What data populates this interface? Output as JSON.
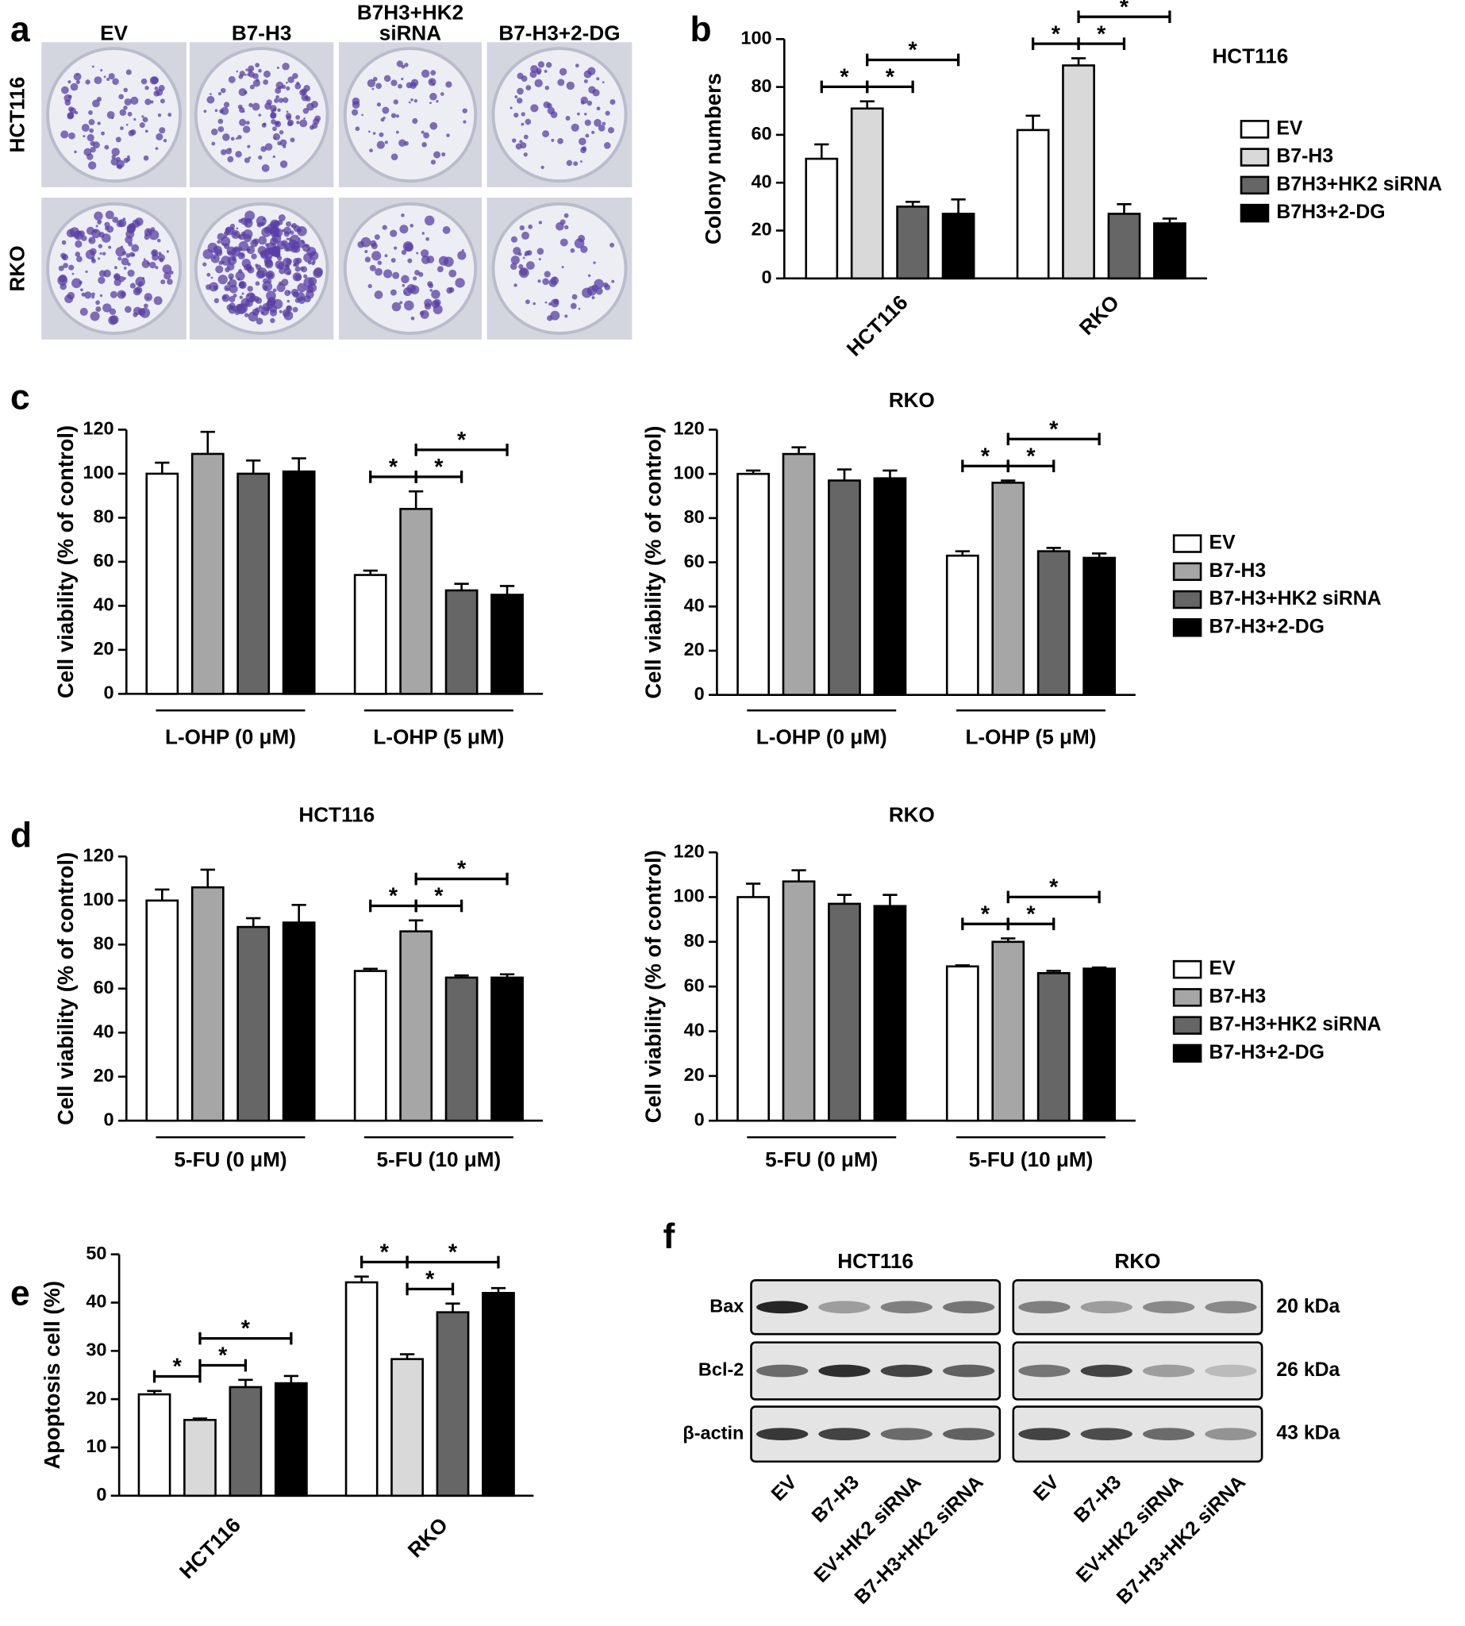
{
  "panel_labels": [
    "a",
    "b",
    "c",
    "d",
    "e",
    "f"
  ],
  "colony_photos": {
    "columns": [
      "EV",
      "B7-H3",
      "B7H3+HK2 siRNA",
      "B7-H3+2-DG"
    ],
    "rows": [
      "HCT116",
      "RKO"
    ]
  },
  "chart_data": [
    {
      "type": "bar",
      "title": "HCT116",
      "y_label": "Colony numbers",
      "categories": [
        "HCT116",
        "RKO"
      ],
      "ylim": [
        0,
        100
      ],
      "yticks": [
        0,
        20,
        40,
        60,
        80,
        100
      ],
      "legend": "right",
      "rotated_categories": true,
      "series": [
        {
          "name": "EV",
          "color": "#ffffff",
          "values": [
            50,
            62
          ],
          "errors": [
            6,
            6
          ]
        },
        {
          "name": "B7-H3",
          "color": "#d9d9d9",
          "values": [
            71,
            89
          ],
          "errors": [
            3,
            3
          ]
        },
        {
          "name": "B7H3+HK2 siRNA",
          "color": "#666666",
          "values": [
            30,
            27
          ],
          "errors": [
            2,
            4
          ]
        },
        {
          "name": "B7H3+2-DG",
          "color": "#000000",
          "values": [
            27,
            23
          ],
          "errors": [
            6,
            2
          ]
        }
      ],
      "comparisons": [
        {
          "category": 0,
          "from": 0,
          "to": 1
        },
        {
          "category": 0,
          "from": 1,
          "to": 2
        },
        {
          "category": 0,
          "from": 1,
          "to": 3
        },
        {
          "category": 1,
          "from": 0,
          "to": 1
        },
        {
          "category": 1,
          "from": 1,
          "to": 2
        },
        {
          "category": 1,
          "from": 1,
          "to": 3
        }
      ],
      "significance_label": "*"
    },
    {
      "type": "bar",
      "y_label": "Cell viability (% of control)",
      "categories": [
        "L-OHP (0 μM)",
        "L-OHP (5 μM)"
      ],
      "ylim": [
        0,
        120
      ],
      "yticks": [
        0,
        20,
        40,
        60,
        80,
        100,
        120
      ],
      "series": [
        {
          "color": "#ffffff",
          "values": [
            100,
            54
          ],
          "errors": [
            5,
            2
          ]
        },
        {
          "color": "#a6a6a6",
          "values": [
            109,
            84
          ],
          "errors": [
            10,
            8
          ]
        },
        {
          "color": "#666666",
          "values": [
            100,
            47
          ],
          "errors": [
            6,
            3
          ]
        },
        {
          "color": "#000000",
          "values": [
            101,
            45
          ],
          "errors": [
            6,
            4
          ]
        }
      ],
      "comparisons": [
        {
          "category": 1,
          "from": 0,
          "to": 1
        },
        {
          "category": 1,
          "from": 1,
          "to": 2
        },
        {
          "category": 1,
          "from": 1,
          "to": 3
        }
      ],
      "significance_label": "*"
    },
    {
      "type": "bar",
      "title": "RKO",
      "y_label": "Cell viability (% of control)",
      "categories": [
        "L-OHP (0 μM)",
        "L-OHP (5 μM)"
      ],
      "ylim": [
        0,
        120
      ],
      "yticks": [
        0,
        20,
        40,
        60,
        80,
        100,
        120
      ],
      "legend": "right",
      "series": [
        {
          "name": "EV",
          "color": "#ffffff",
          "values": [
            100,
            63
          ],
          "errors": [
            1.5,
            2
          ]
        },
        {
          "name": "B7-H3",
          "color": "#a6a6a6",
          "values": [
            109,
            96
          ],
          "errors": [
            3,
            1
          ]
        },
        {
          "name": "B7-H3+HK2 siRNA",
          "color": "#666666",
          "values": [
            97,
            65
          ],
          "errors": [
            5,
            1.5
          ]
        },
        {
          "name": "B7-H3+2-DG",
          "color": "#000000",
          "values": [
            98,
            62
          ],
          "errors": [
            3.5,
            2
          ]
        }
      ],
      "comparisons": [
        {
          "category": 1,
          "from": 0,
          "to": 1
        },
        {
          "category": 1,
          "from": 1,
          "to": 2
        },
        {
          "category": 1,
          "from": 1,
          "to": 3
        }
      ],
      "significance_label": "*"
    },
    {
      "type": "bar",
      "title": "HCT116",
      "y_label": "Cell viability (% of control)",
      "categories": [
        "5-FU (0 μM)",
        "5-FU (10 μM)"
      ],
      "ylim": [
        0,
        120
      ],
      "yticks": [
        0,
        20,
        40,
        60,
        80,
        100,
        120
      ],
      "series": [
        {
          "color": "#ffffff",
          "values": [
            100,
            68
          ],
          "errors": [
            5,
            1
          ]
        },
        {
          "color": "#a6a6a6",
          "values": [
            106,
            86
          ],
          "errors": [
            8,
            5
          ]
        },
        {
          "color": "#666666",
          "values": [
            88,
            65
          ],
          "errors": [
            4,
            1
          ]
        },
        {
          "color": "#000000",
          "values": [
            90,
            65
          ],
          "errors": [
            8,
            1.5
          ]
        }
      ],
      "comparisons": [
        {
          "category": 1,
          "from": 0,
          "to": 1
        },
        {
          "category": 1,
          "from": 1,
          "to": 2
        },
        {
          "category": 1,
          "from": 1,
          "to": 3
        }
      ],
      "significance_label": "*"
    },
    {
      "type": "bar",
      "title": "RKO",
      "y_label": "Cell viability (% of control)",
      "categories": [
        "5-FU (0 μM)",
        "5-FU (10 μM)"
      ],
      "ylim": [
        0,
        120
      ],
      "yticks": [
        0,
        20,
        40,
        60,
        80,
        100,
        120
      ],
      "legend": "right",
      "series": [
        {
          "name": "EV",
          "color": "#ffffff",
          "values": [
            100,
            69
          ],
          "errors": [
            6,
            0.5
          ]
        },
        {
          "name": "B7-H3",
          "color": "#a6a6a6",
          "values": [
            107,
            80
          ],
          "errors": [
            5,
            1.5
          ]
        },
        {
          "name": "B7-H3+HK2 siRNA",
          "color": "#666666",
          "values": [
            97,
            66
          ],
          "errors": [
            4,
            1
          ]
        },
        {
          "name": "B7-H3+2-DG",
          "color": "#000000",
          "values": [
            96,
            68
          ],
          "errors": [
            5,
            0.5
          ]
        }
      ],
      "comparisons": [
        {
          "category": 1,
          "from": 0,
          "to": 1
        },
        {
          "category": 1,
          "from": 1,
          "to": 2
        },
        {
          "category": 1,
          "from": 1,
          "to": 3
        }
      ],
      "significance_label": "*"
    },
    {
      "type": "bar",
      "y_label": "Apoptosis cell (%)",
      "categories": [
        "HCT116",
        "RKO"
      ],
      "ylim": [
        0,
        50
      ],
      "yticks": [
        0,
        10,
        20,
        30,
        40,
        50
      ],
      "rotated_categories": true,
      "series": [
        {
          "color": "#ffffff",
          "values": [
            21,
            44.2
          ],
          "errors": [
            0.7,
            1.2
          ]
        },
        {
          "color": "#d9d9d9",
          "values": [
            15.7,
            28.3
          ],
          "errors": [
            0.3,
            1
          ]
        },
        {
          "color": "#666666",
          "values": [
            22.5,
            38
          ],
          "errors": [
            1.5,
            1.8
          ]
        },
        {
          "color": "#000000",
          "values": [
            23.3,
            42
          ],
          "errors": [
            1.5,
            1
          ]
        }
      ],
      "comparisons": [
        {
          "category": 0,
          "from": 0,
          "to": 1
        },
        {
          "category": 0,
          "from": 1,
          "to": 2
        },
        {
          "category": 0,
          "from": 1,
          "to": 3
        },
        {
          "category": 1,
          "from": 0,
          "to": 1
        },
        {
          "category": 1,
          "from": 1,
          "to": 2
        },
        {
          "category": 1,
          "from": 1,
          "to": 3
        }
      ],
      "significance_label": "*"
    }
  ],
  "western_blot": {
    "groups": [
      "HCT116",
      "RKO"
    ],
    "proteins": [
      "Bax",
      "Bcl-2",
      "β-actin"
    ],
    "sizes": [
      "20 kDa",
      "26 kDa",
      "43 kDa"
    ],
    "lanes": [
      "EV",
      "B7-H3",
      "EV+HK2 siRNA",
      "B7-H3+HK2 siRNA"
    ]
  }
}
